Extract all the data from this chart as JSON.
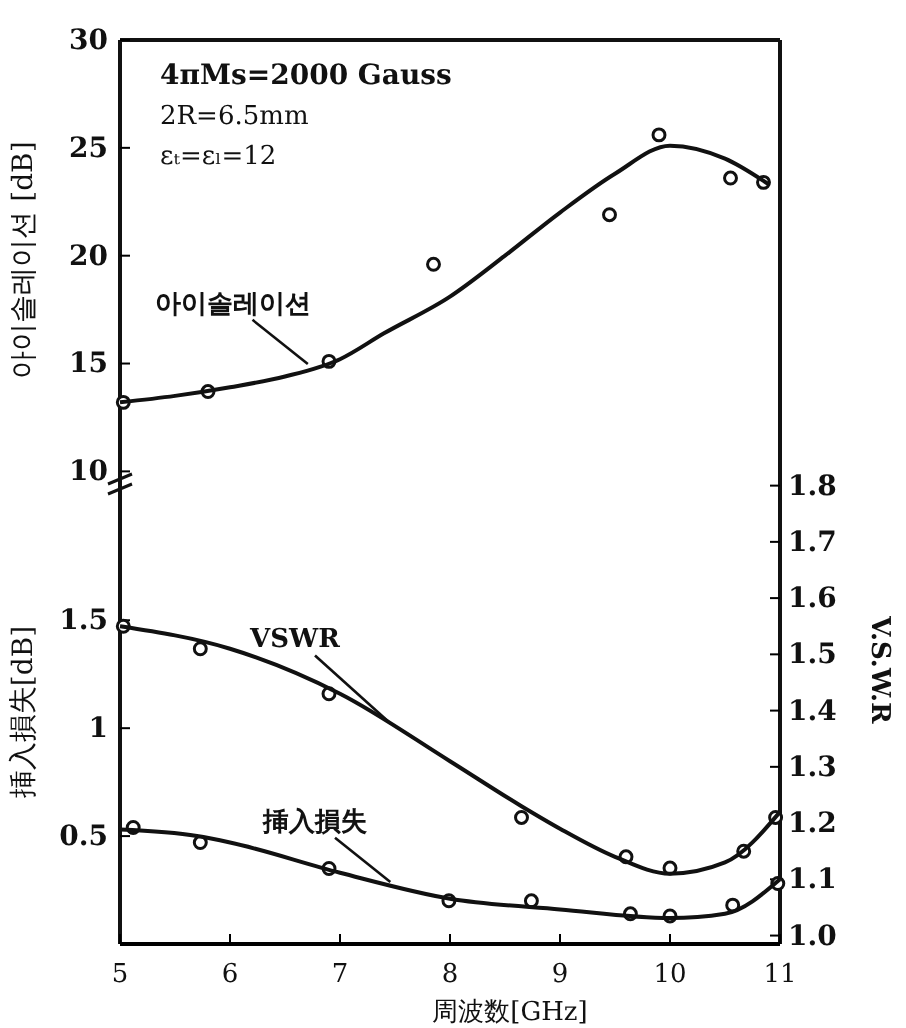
{
  "chart_data": [
    {
      "type": "line",
      "ylabel": "아이솔레이션 [dB]",
      "xlim": [
        5,
        11
      ],
      "xticks": [
        5,
        6,
        7,
        8,
        9,
        10,
        11
      ],
      "ylim": [
        9.6,
        30
      ],
      "yticks": [
        10,
        15,
        20,
        25,
        30
      ],
      "tick_labels": "y",
      "annotations": [
        "4πMs=2000 Gauss",
        "2R=6.5mm",
        "εₜ=εₗ=12"
      ],
      "series": [
        {
          "type": "scatter",
          "marker": "circle",
          "color": "#111111",
          "x": [
            5.03,
            5.8,
            6.9,
            7.85,
            9.45,
            9.9,
            10.55,
            10.85
          ],
          "values": [
            13.2,
            13.7,
            15.1,
            19.6,
            21.9,
            25.6,
            23.6,
            23.4
          ]
        },
        {
          "type": "line",
          "name": "아이솔레이션",
          "color": "#111111",
          "x": [
            5,
            5.5,
            6,
            6.5,
            7,
            7.4,
            8,
            8.5,
            9,
            9.5,
            10,
            10.5,
            10.9
          ],
          "values": [
            13.2,
            13.5,
            13.9,
            14.4,
            15.2,
            16.4,
            18.1,
            20.0,
            22.0,
            23.8,
            25.1,
            24.5,
            23.3
          ]
        }
      ]
    },
    {
      "type": "line",
      "xlabel": "周波数[GHz]",
      "ylabel": "挿入損失[dB]",
      "y2label": "V.S.W.R",
      "xlim": [
        5,
        11
      ],
      "xticks": [
        5,
        6,
        7,
        8,
        9,
        10,
        11
      ],
      "ylim": [
        0,
        2.15
      ],
      "yticks": [
        0.5,
        1.0,
        1.5
      ],
      "y2lim": [
        0.985,
        1.81
      ],
      "y2ticks": [
        {
          "value": 1.0,
          "label": "1.0"
        },
        1.1,
        1.2,
        1.3,
        1.4,
        1.5,
        1.6,
        1.7,
        1.8
      ],
      "series": [
        {
          "type": "scatter",
          "marker": "circle",
          "color": "#111111",
          "x": [
            5.12,
            5.73,
            6.9,
            7.99,
            8.74,
            9.64,
            10.0,
            10.57,
            10.98
          ],
          "values": [
            0.54,
            0.47,
            0.35,
            0.2,
            0.2,
            0.14,
            0.13,
            0.18,
            0.28
          ]
        },
        {
          "type": "line",
          "name": "挿入損失",
          "color": "#111111",
          "x": [
            5,
            5.7,
            6,
            7,
            8,
            9,
            10,
            10.5,
            11
          ],
          "values": [
            0.53,
            0.5,
            0.47,
            0.33,
            0.21,
            0.16,
            0.12,
            0.14,
            0.3
          ]
        },
        {
          "type": "scatter",
          "axis": "y2",
          "marker": "circle",
          "color": "#111111",
          "x": [
            5.03,
            5.73,
            6.9,
            8.65,
            9.6,
            10.0,
            10.67,
            10.96
          ],
          "values": [
            1.55,
            1.51,
            1.43,
            1.21,
            1.14,
            1.12,
            1.15,
            1.21
          ]
        },
        {
          "type": "line",
          "axis": "y2",
          "name": "VSWR",
          "color": "#111111",
          "x": [
            5,
            6,
            7,
            8,
            8.65,
            9,
            9.5,
            10,
            10.5,
            11
          ],
          "values": [
            1.55,
            1.51,
            1.43,
            1.31,
            1.23,
            1.19,
            1.14,
            1.11,
            1.13,
            1.22
          ]
        }
      ]
    }
  ]
}
